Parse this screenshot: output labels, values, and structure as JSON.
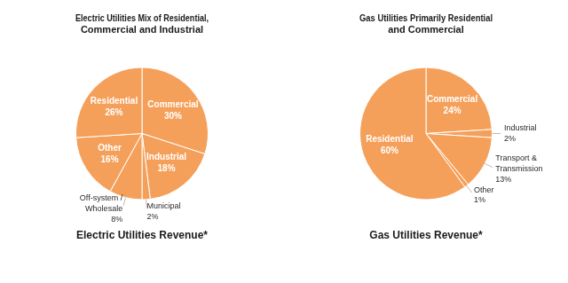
{
  "chart_data": [
    {
      "type": "pie",
      "title": "Electric Utilities Mix of Residential,\nCommercial and Industrial",
      "subtitle": "Electric Utilities Revenue*",
      "categories": [
        "Commercial",
        "Industrial",
        "Municipal",
        "Off-system /\nWholesale",
        "Other",
        "Residential"
      ],
      "values": [
        30,
        18,
        2,
        8,
        16,
        26
      ],
      "value_labels": [
        "30%",
        "18%",
        "2%",
        "8%",
        "16%",
        "26%"
      ],
      "color": "#F5A05A",
      "data_labels": true
    },
    {
      "type": "pie",
      "title": "Gas Utilities Primarily Residential\nand Commercial",
      "subtitle": "Gas Utilities Revenue*",
      "categories": [
        "Commercial",
        "Industrial",
        "Transport &\nTransmission",
        "Other",
        "Residential"
      ],
      "values": [
        24,
        2,
        13,
        1,
        60
      ],
      "value_labels": [
        "24%",
        "2%",
        "13%",
        "1%",
        "60%"
      ],
      "color": "#F5A05A",
      "data_labels": true
    }
  ]
}
